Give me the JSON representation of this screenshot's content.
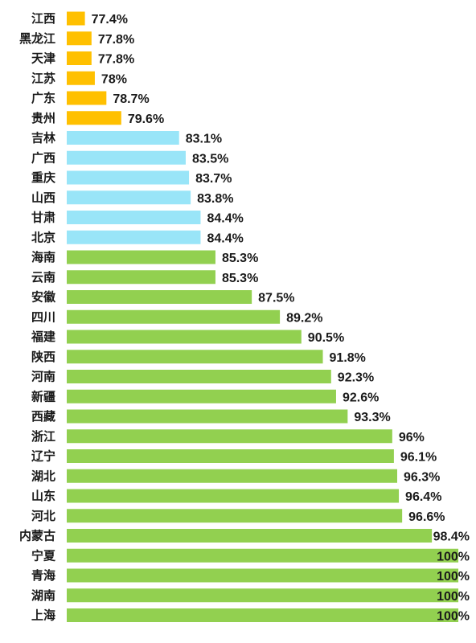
{
  "chart_data": {
    "type": "bar",
    "orientation": "horizontal",
    "title": "",
    "xlabel": "",
    "ylabel": "",
    "grid": false,
    "legend": "none",
    "xlim": [
      76.3,
      100
    ],
    "colors": {
      "low": "#FFC000",
      "mid": "#99E5F8",
      "high": "#92D050"
    },
    "categories": [
      "江西",
      "黑龙江",
      "天津",
      "江苏",
      "广东",
      "贵州",
      "吉林",
      "广西",
      "重庆",
      "山西",
      "甘肃",
      "北京",
      "海南",
      "云南",
      "安徽",
      "四川",
      "福建",
      "陕西",
      "河南",
      "新疆",
      "西藏",
      "浙江",
      "辽宁",
      "湖北",
      "山东",
      "河北",
      "内蒙古",
      "宁夏",
      "青海",
      "湖南",
      "上海"
    ],
    "values": [
      77.4,
      77.8,
      77.8,
      78,
      78.7,
      79.6,
      83.1,
      83.5,
      83.7,
      83.8,
      84.4,
      84.4,
      85.3,
      85.3,
      87.5,
      89.2,
      90.5,
      91.8,
      92.3,
      92.6,
      93.3,
      96,
      96.1,
      96.3,
      96.4,
      96.6,
      98.4,
      100,
      100,
      100,
      100
    ],
    "value_labels": [
      "77.4%",
      "77.8%",
      "77.8%",
      "78%",
      "78.7%",
      "79.6%",
      "83.1%",
      "83.5%",
      "83.7%",
      "83.8%",
      "84.4%",
      "84.4%",
      "85.3%",
      "85.3%",
      "87.5%",
      "89.2%",
      "90.5%",
      "91.8%",
      "92.3%",
      "92.6%",
      "93.3%",
      "96%",
      "96.1%",
      "96.3%",
      "96.4%",
      "96.6%",
      "98.4%",
      "100%",
      "100%",
      "100%",
      "100%"
    ],
    "color_groups": [
      "low",
      "low",
      "low",
      "low",
      "low",
      "low",
      "mid",
      "mid",
      "mid",
      "mid",
      "mid",
      "mid",
      "high",
      "high",
      "high",
      "high",
      "high",
      "high",
      "high",
      "high",
      "high",
      "high",
      "high",
      "high",
      "high",
      "high",
      "high",
      "high",
      "high",
      "high",
      "high"
    ]
  }
}
